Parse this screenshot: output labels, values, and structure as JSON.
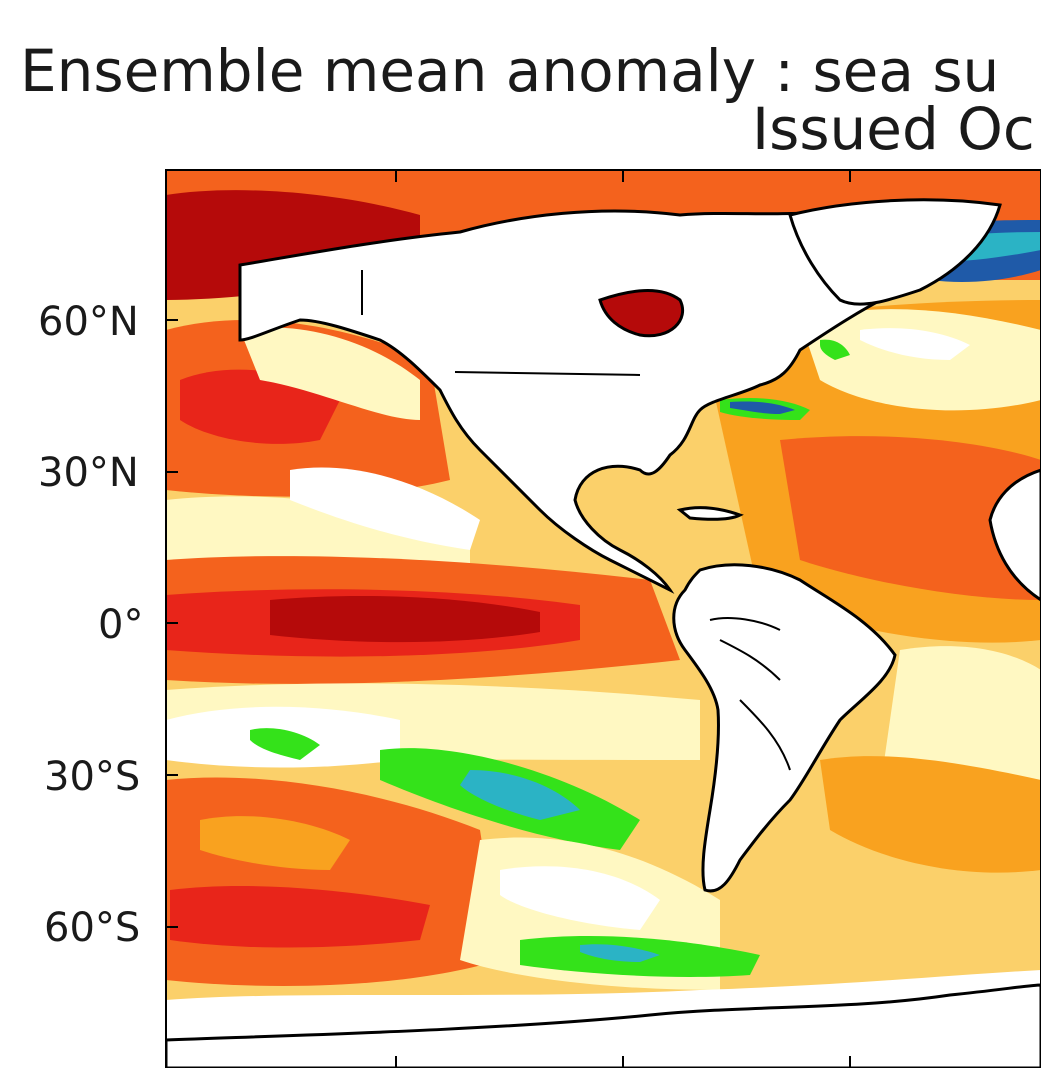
{
  "header": {
    "title": "Ensemble mean anomaly : sea su",
    "subtitle": "Issued Oc"
  },
  "axes": {
    "lat_labels": [
      "60°N",
      "30°N",
      "0°",
      "30°S",
      "60°S"
    ]
  },
  "colors": {
    "dark_red": "#b50a0a",
    "red": "#e8251a",
    "orange_red": "#f4621d",
    "orange": "#f9a21f",
    "light_orange": "#fbd06a",
    "pale_yellow": "#fff8c2",
    "green": "#34e21a",
    "cyan": "#2bb3c5",
    "blue": "#1f5aa8",
    "land": "#ffffff",
    "coast": "#000000"
  },
  "icons": [
    "map-area"
  ]
}
